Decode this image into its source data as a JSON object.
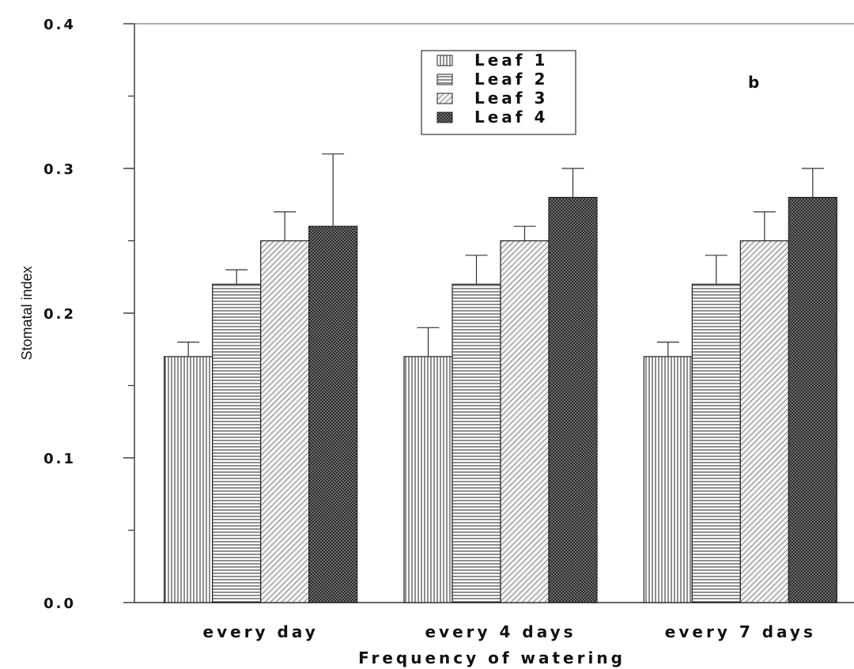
{
  "chart_data": {
    "type": "bar",
    "panel_label": "b",
    "xlabel": "Frequency of watering",
    "ylabel": "Stomatal index",
    "ylim": [
      0.0,
      0.4
    ],
    "yticks": [
      "0.0",
      "0.1",
      "0.2",
      "0.3",
      "0.4"
    ],
    "categories": [
      "every day",
      "every 4 days",
      "every 7 days"
    ],
    "series": [
      {
        "name": "Leaf 1",
        "values": [
          0.17,
          0.17,
          0.17
        ],
        "errors": [
          0.01,
          0.02,
          0.01
        ],
        "pattern": "vertical-lines"
      },
      {
        "name": "Leaf 2",
        "values": [
          0.22,
          0.22,
          0.22
        ],
        "errors": [
          0.01,
          0.02,
          0.02
        ],
        "pattern": "horizontal-lines"
      },
      {
        "name": "Leaf 3",
        "values": [
          0.25,
          0.25,
          0.25
        ],
        "errors": [
          0.02,
          0.01,
          0.02
        ],
        "pattern": "diagonal-lines"
      },
      {
        "name": "Leaf 4",
        "values": [
          0.26,
          0.28,
          0.28
        ],
        "errors": [
          0.05,
          0.02,
          0.02
        ],
        "pattern": "crosshatch"
      }
    ],
    "legend_position": "top-center",
    "grid": false
  }
}
